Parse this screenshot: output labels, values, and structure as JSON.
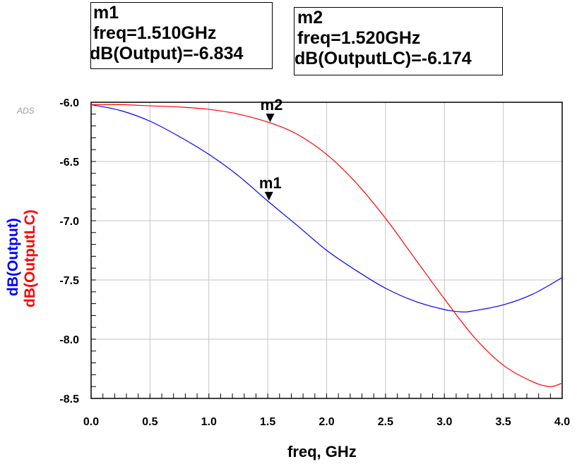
{
  "markers": [
    {
      "name": "m1",
      "line1": "freq=1.510GHz",
      "line2": "dB(Output)=-6.834",
      "label": "m1"
    },
    {
      "name": "m2",
      "line1": "freq=1.520GHz",
      "line2": "dB(OutputLC)=-6.174",
      "label": "m2"
    }
  ],
  "watermark": "ADS",
  "chart_data": {
    "type": "line",
    "xlabel": "freq, GHz",
    "xlim": [
      0.0,
      4.0
    ],
    "ylim": [
      -8.5,
      -6.0
    ],
    "xticks": [
      "0.0",
      "0.5",
      "1.0",
      "1.5",
      "2.0",
      "2.5",
      "3.0",
      "3.5",
      "4.0"
    ],
    "yticks": [
      "-6.0",
      "-6.5",
      "-7.0",
      "-7.5",
      "-8.0",
      "-8.5"
    ],
    "grid": true,
    "series": [
      {
        "name": "dB(Output)",
        "color": "#0000ff",
        "x": [
          0.0,
          0.25,
          0.5,
          0.75,
          1.0,
          1.25,
          1.5,
          1.75,
          2.0,
          2.25,
          2.5,
          2.75,
          3.0,
          3.15,
          3.25,
          3.5,
          3.75,
          4.0
        ],
        "y": [
          -6.02,
          -6.07,
          -6.16,
          -6.29,
          -6.44,
          -6.62,
          -6.834,
          -7.04,
          -7.25,
          -7.42,
          -7.57,
          -7.68,
          -7.75,
          -7.77,
          -7.76,
          -7.71,
          -7.62,
          -7.48
        ]
      },
      {
        "name": "dB(OutputLC)",
        "color": "#ff0000",
        "x": [
          0.0,
          0.25,
          0.5,
          0.75,
          1.0,
          1.25,
          1.52,
          1.75,
          2.0,
          2.25,
          2.5,
          2.75,
          3.0,
          3.25,
          3.5,
          3.75,
          3.9,
          4.0
        ],
        "y": [
          -6.02,
          -6.02,
          -6.03,
          -6.04,
          -6.06,
          -6.1,
          -6.174,
          -6.27,
          -6.44,
          -6.68,
          -6.98,
          -7.32,
          -7.66,
          -7.98,
          -8.22,
          -8.36,
          -8.4,
          -8.37
        ]
      }
    ],
    "markers": [
      {
        "label": "m1",
        "series": 0,
        "x": 1.51,
        "y": -6.834
      },
      {
        "label": "m2",
        "series": 1,
        "x": 1.52,
        "y": -6.174
      }
    ]
  }
}
